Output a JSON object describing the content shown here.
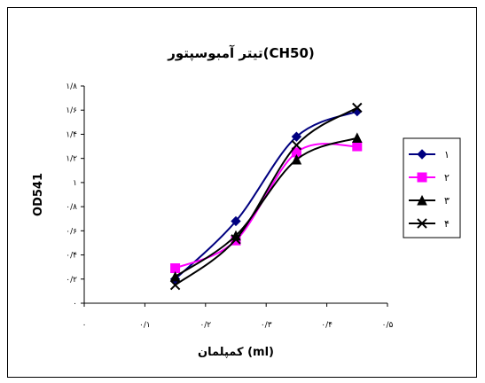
{
  "chart_data": {
    "type": "line",
    "title": "تیتر آمبوسپتور(CH50)",
    "xlabel": "کمپلمان (ml)",
    "ylabel": "OD541",
    "xlim": [
      0,
      0.5
    ],
    "ylim": [
      0,
      1.8
    ],
    "x_ticks": [
      {
        "value": 0,
        "label": "۰"
      },
      {
        "value": 0.1,
        "label": "۰/۱"
      },
      {
        "value": 0.2,
        "label": "۰/۲"
      },
      {
        "value": 0.3,
        "label": "۰/۳"
      },
      {
        "value": 0.4,
        "label": "۰/۴"
      },
      {
        "value": 0.5,
        "label": "۰/۵"
      }
    ],
    "y_ticks": [
      {
        "value": 0,
        "label": "۰"
      },
      {
        "value": 0.2,
        "label": "۰/۲"
      },
      {
        "value": 0.4,
        "label": "۰/۴"
      },
      {
        "value": 0.6,
        "label": "۰/۶"
      },
      {
        "value": 0.8,
        "label": "۰/۸"
      },
      {
        "value": 1,
        "label": "۱"
      },
      {
        "value": 1.2,
        "label": "۱/۲"
      },
      {
        "value": 1.4,
        "label": "۱/۴"
      },
      {
        "value": 1.6,
        "label": "۱/۶"
      },
      {
        "value": 1.8,
        "label": "۱/۸"
      }
    ],
    "x": [
      0.15,
      0.25,
      0.35,
      0.45
    ],
    "series": [
      {
        "name": "۱",
        "values": [
          0.2,
          0.68,
          1.38,
          1.59
        ],
        "color": "#000080",
        "marker": "diamond"
      },
      {
        "name": "۲",
        "values": [
          0.29,
          0.52,
          1.25,
          1.3
        ],
        "color": "#ff00ff",
        "marker": "square"
      },
      {
        "name": "۳",
        "values": [
          0.22,
          0.56,
          1.19,
          1.37
        ],
        "color": "#000000",
        "marker": "triangle"
      },
      {
        "name": "۴",
        "values": [
          0.15,
          0.53,
          1.31,
          1.62
        ],
        "color": "#000000",
        "marker": "x"
      }
    ],
    "grid": false,
    "legend_position": "right"
  }
}
